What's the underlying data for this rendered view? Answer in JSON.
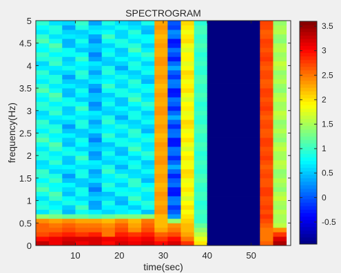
{
  "chart_data": {
    "type": "heatmap",
    "title": "SPECTROGRAM",
    "xlabel": "time(sec)",
    "ylabel": "frequency(Hz)",
    "xlim": [
      1,
      59
    ],
    "ylim": [
      0,
      5
    ],
    "xticks": [
      10,
      20,
      30,
      40,
      50
    ],
    "yticks": [
      0,
      0.5,
      1,
      1.5,
      2,
      2.5,
      3,
      3.5,
      4,
      4.5,
      5
    ],
    "ytick_labels": [
      "0",
      "0.5",
      "1",
      "1.5",
      "2",
      "2.5",
      "3",
      "3.5",
      "4",
      "4.5",
      "5"
    ],
    "colormap": "jet",
    "clim": [
      -0.95,
      3.6
    ],
    "colorbar": {
      "ticks": [
        -0.5,
        0,
        0.5,
        1,
        1.5,
        2,
        2.5,
        3,
        3.5
      ],
      "tick_labels": [
        "-0.5",
        "0",
        "0.5",
        "1",
        "1.5",
        "2",
        "2.5",
        "3",
        "3.5"
      ],
      "placement": "right"
    },
    "time_bins": [
      {
        "t": [
          1,
          4
        ],
        "low": [
          3.3,
          3.0,
          2.7,
          2.6,
          2.6,
          2.4,
          1.4
        ],
        "high": 0.85,
        "high_var": 0.3
      },
      {
        "t": [
          4,
          7
        ],
        "low": [
          3.1,
          3.1,
          2.8,
          2.6,
          2.5,
          2.3,
          1.3
        ],
        "high": 0.85,
        "high_var": 0.3
      },
      {
        "t": [
          7,
          10
        ],
        "low": [
          3.3,
          3.2,
          2.9,
          2.7,
          2.6,
          2.4,
          1.2
        ],
        "high": 0.6,
        "high_var": 0.3
      },
      {
        "t": [
          10,
          13
        ],
        "low": [
          3.1,
          3.2,
          2.8,
          2.6,
          2.5,
          2.3,
          1.2
        ],
        "high": 0.75,
        "high_var": 0.3
      },
      {
        "t": [
          13,
          16
        ],
        "low": [
          3.2,
          3.2,
          2.9,
          2.6,
          2.5,
          2.3,
          1.1
        ],
        "high": 0.45,
        "high_var": 0.3
      },
      {
        "t": [
          16,
          19
        ],
        "low": [
          3.0,
          3.1,
          2.5,
          2.5,
          2.4,
          2.2,
          1.2
        ],
        "high": 0.75,
        "high_var": 0.3
      },
      {
        "t": [
          19,
          22
        ],
        "low": [
          3.2,
          3.1,
          2.9,
          2.7,
          2.6,
          2.4,
          1.3
        ],
        "high": 0.65,
        "high_var": 0.3
      },
      {
        "t": [
          22,
          25
        ],
        "low": [
          3.1,
          3.0,
          2.8,
          2.4,
          2.3,
          2.2,
          1.3
        ],
        "high": 0.8,
        "high_var": 0.3
      },
      {
        "t": [
          25,
          28
        ],
        "low": [
          3.2,
          3.1,
          2.9,
          2.7,
          2.6,
          2.5,
          1.4
        ],
        "high": 0.7,
        "high_var": 0.3
      },
      {
        "t": [
          28,
          31
        ],
        "low": [
          3.0,
          2.8,
          2.6,
          2.3,
          2.2,
          2.2,
          2.2
        ],
        "high": 2.3,
        "high_var": 0.1
      },
      {
        "t": [
          31,
          34
        ],
        "low": [
          3.2,
          3.0,
          2.7,
          2.5,
          2.4,
          1.4,
          0.3
        ],
        "high": 0.0,
        "high_var": 0.4
      },
      {
        "t": [
          34,
          37
        ],
        "low": [
          2.8,
          2.5,
          2.3,
          2.2,
          2.2,
          2.1,
          2.0
        ],
        "high": 1.9,
        "high_var": 0.2
      },
      {
        "t": [
          37,
          40
        ],
        "low": [
          2.0,
          1.8,
          1.6,
          1.4,
          1.2,
          1.0,
          1.0
        ],
        "high": 1.0,
        "high_var": 0.1
      },
      {
        "t": [
          40,
          52
        ],
        "low": [
          -0.95,
          -0.95,
          -0.95,
          -0.95,
          -0.95,
          -0.95,
          -0.95
        ],
        "high": -0.95,
        "high_var": 0
      },
      {
        "t": [
          52,
          55
        ],
        "low": [
          2.6,
          2.5,
          2.5,
          2.5,
          2.6,
          2.7,
          2.8
        ],
        "high": 2.7,
        "high_var": 0.1
      },
      {
        "t": [
          55,
          58
        ],
        "low": [
          3.4,
          3.2,
          2.8,
          2.4,
          1.6,
          1.5,
          1.5
        ],
        "high": 1.5,
        "high_var": 0.15
      }
    ]
  }
}
